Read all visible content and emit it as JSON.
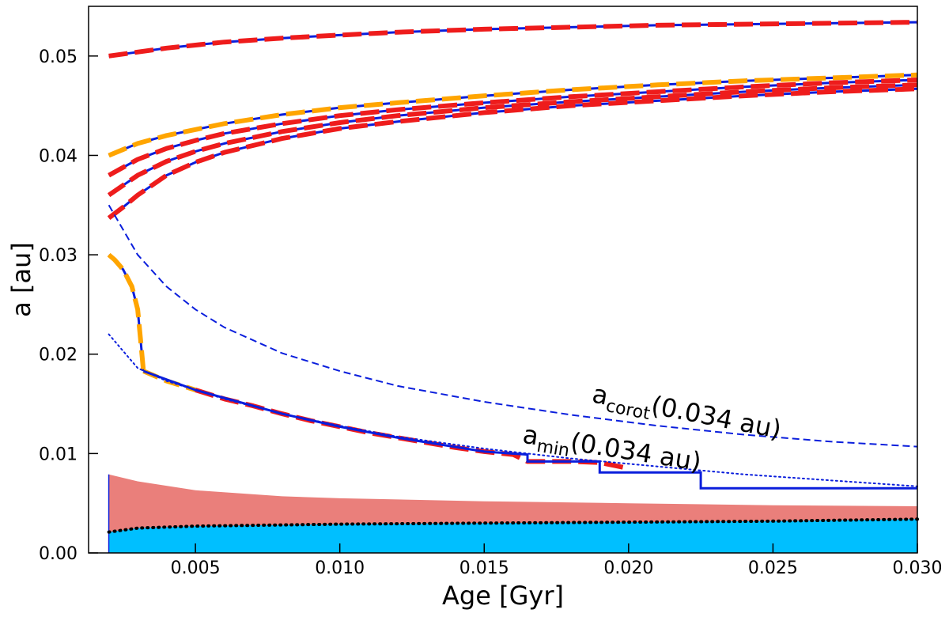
{
  "chart_data": {
    "type": "line",
    "xlabel": "Age [Gyr]",
    "ylabel": "a [au]",
    "xlim": [
      0.0013,
      0.03
    ],
    "ylim": [
      0.0,
      0.055
    ],
    "xticks": [
      0.005,
      0.01,
      0.015,
      0.02,
      0.025,
      0.03
    ],
    "xtick_labels": [
      "0.005",
      "0.010",
      "0.015",
      "0.020",
      "0.025",
      "0.030"
    ],
    "yticks": [
      0.0,
      0.01,
      0.02,
      0.03,
      0.04,
      0.05
    ],
    "ytick_labels": [
      "0.00",
      "0.01",
      "0.02",
      "0.03",
      "0.04",
      "0.05"
    ],
    "colors": {
      "blue": "#0a1edc",
      "red": "#ee1c1c",
      "orange": "#ffa500",
      "salmon": "#ea7f7b",
      "cyan": "#00bfff"
    },
    "annotations": [
      {
        "name": "annotation-acorot",
        "base": "a",
        "sub": "corot",
        "rest": "(0.034 au)",
        "x": 0.0187,
        "y": 0.0152,
        "rotation_deg": 11
      },
      {
        "name": "annotation-amin",
        "base": "a",
        "sub": "min",
        "rest": "(0.034 au)",
        "x": 0.0163,
        "y": 0.0111,
        "rotation_deg": 9
      }
    ],
    "series": [
      {
        "name": "orbit-0.050",
        "style": "blue-solid+red-dashed",
        "x": [
          0.002,
          0.004,
          0.006,
          0.008,
          0.01,
          0.012,
          0.015,
          0.018,
          0.021,
          0.024,
          0.027,
          0.03
        ],
        "y": [
          0.05,
          0.0508,
          0.0514,
          0.0518,
          0.0521,
          0.0524,
          0.0527,
          0.0529,
          0.0531,
          0.0532,
          0.0533,
          0.0534
        ]
      },
      {
        "name": "orbit-0.040",
        "style": "blue-solid+orange-dashed",
        "x": [
          0.002,
          0.003,
          0.004,
          0.005,
          0.006,
          0.008,
          0.01,
          0.012,
          0.015,
          0.018,
          0.021,
          0.024,
          0.027,
          0.03
        ],
        "y": [
          0.04,
          0.0412,
          0.042,
          0.0426,
          0.0432,
          0.0441,
          0.0448,
          0.0453,
          0.046,
          0.0466,
          0.0471,
          0.0475,
          0.0478,
          0.0481
        ]
      },
      {
        "name": "orbit-0.038",
        "style": "blue-solid+red-dashed",
        "x": [
          0.002,
          0.003,
          0.004,
          0.005,
          0.006,
          0.008,
          0.01,
          0.012,
          0.015,
          0.018,
          0.021,
          0.024,
          0.027,
          0.03
        ],
        "y": [
          0.038,
          0.0396,
          0.0407,
          0.0415,
          0.0422,
          0.0432,
          0.044,
          0.0446,
          0.0453,
          0.0459,
          0.0464,
          0.0469,
          0.0473,
          0.0476
        ]
      },
      {
        "name": "orbit-0.036",
        "style": "blue-solid+red-dashed",
        "x": [
          0.002,
          0.003,
          0.004,
          0.005,
          0.006,
          0.008,
          0.01,
          0.012,
          0.015,
          0.018,
          0.021,
          0.024,
          0.027,
          0.03
        ],
        "y": [
          0.036,
          0.038,
          0.0394,
          0.0404,
          0.0412,
          0.0424,
          0.0433,
          0.044,
          0.0448,
          0.0454,
          0.0459,
          0.0464,
          0.0468,
          0.0471
        ]
      },
      {
        "name": "orbit-0.034",
        "style": "blue-solid+red-dashed",
        "x": [
          0.002,
          0.0025,
          0.003,
          0.004,
          0.005,
          0.006,
          0.008,
          0.01,
          0.012,
          0.015,
          0.018,
          0.021,
          0.024,
          0.027,
          0.03
        ],
        "y": [
          0.0337,
          0.0348,
          0.036,
          0.038,
          0.0393,
          0.0403,
          0.0417,
          0.0427,
          0.0434,
          0.0443,
          0.045,
          0.0455,
          0.046,
          0.0464,
          0.0467
        ]
      },
      {
        "name": "orbit-0.030-decay",
        "style": "blue-solid+orange-dashed",
        "x": [
          0.002,
          0.0022,
          0.0025,
          0.0028,
          0.003,
          0.0031,
          0.0032
        ],
        "y": [
          0.03,
          0.0295,
          0.0285,
          0.0268,
          0.0245,
          0.0215,
          0.0183
        ]
      },
      {
        "name": "orbit-0.030-followmin-orange",
        "style": "orange-dashed",
        "x": [
          0.0032,
          0.004,
          0.005
        ],
        "y": [
          0.0183,
          0.0173,
          0.0164
        ]
      },
      {
        "name": "orbit-0.034-decay-red",
        "style": "red-dashed",
        "x": [
          0.005,
          0.006,
          0.007,
          0.008,
          0.009,
          0.01,
          0.011,
          0.012,
          0.013,
          0.014,
          0.015,
          0.016,
          0.0165,
          0.017,
          0.018,
          0.019,
          0.0195,
          0.02
        ],
        "y": [
          0.0164,
          0.0155,
          0.0148,
          0.014,
          0.0133,
          0.0127,
          0.0121,
          0.0116,
          0.0111,
          0.0106,
          0.0102,
          0.0099,
          0.0092,
          0.0092,
          0.0092,
          0.0091,
          0.0088,
          0.0085
        ]
      },
      {
        "name": "blue-staircase",
        "style": "blue-solid",
        "x": [
          0.0032,
          0.005,
          0.008,
          0.01,
          0.012,
          0.015,
          0.0165,
          0.0165,
          0.019,
          0.019,
          0.0225,
          0.0225,
          0.03
        ],
        "y": [
          0.0183,
          0.0164,
          0.014,
          0.0127,
          0.0116,
          0.0102,
          0.0099,
          0.0092,
          0.0092,
          0.0081,
          0.0081,
          0.0065,
          0.0065
        ]
      },
      {
        "name": "a-corot",
        "style": "blue-dashed-thin",
        "x": [
          0.002,
          0.003,
          0.004,
          0.005,
          0.006,
          0.008,
          0.01,
          0.012,
          0.015,
          0.018,
          0.021,
          0.024,
          0.027,
          0.03
        ],
        "y": [
          0.035,
          0.03,
          0.0268,
          0.0245,
          0.0227,
          0.0201,
          0.0183,
          0.0168,
          0.0152,
          0.0139,
          0.0128,
          0.0119,
          0.0112,
          0.0107
        ]
      },
      {
        "name": "a-min",
        "style": "blue-dotted-thin",
        "x": [
          0.002,
          0.003,
          0.004,
          0.005,
          0.006,
          0.008,
          0.01,
          0.012,
          0.015,
          0.018,
          0.021,
          0.024,
          0.027,
          0.03
        ],
        "y": [
          0.022,
          0.0186,
          0.0173,
          0.0164,
          0.0155,
          0.014,
          0.0128,
          0.0117,
          0.0105,
          0.0095,
          0.0087,
          0.0079,
          0.0073,
          0.0067
        ]
      },
      {
        "name": "inner-boundary",
        "style": "black-dotted",
        "x": [
          0.002,
          0.003,
          0.005,
          0.01,
          0.015,
          0.02,
          0.025,
          0.03
        ],
        "y": [
          0.0021,
          0.0025,
          0.0027,
          0.0029,
          0.003,
          0.0031,
          0.0032,
          0.0034
        ]
      }
    ],
    "regions": [
      {
        "name": "stellar-radius-region",
        "color": "salmon",
        "x": [
          0.002,
          0.003,
          0.005,
          0.008,
          0.01,
          0.015,
          0.02,
          0.025,
          0.03
        ],
        "upper": [
          0.0079,
          0.0072,
          0.0063,
          0.0057,
          0.0055,
          0.0052,
          0.005,
          0.0048,
          0.0047
        ]
      },
      {
        "name": "core-region",
        "color": "cyan",
        "x": [
          0.002,
          0.003,
          0.005,
          0.01,
          0.015,
          0.02,
          0.025,
          0.03
        ],
        "upper": [
          0.0021,
          0.0025,
          0.0027,
          0.0029,
          0.003,
          0.0031,
          0.0032,
          0.0034
        ]
      }
    ]
  }
}
